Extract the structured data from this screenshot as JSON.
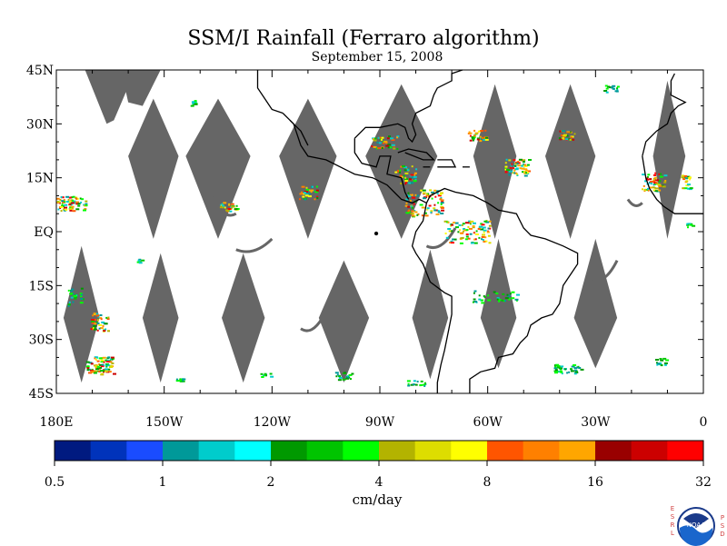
{
  "title": "SSM/I Rainfall (Ferraro algorithm)",
  "subtitle": "September 15, 2008",
  "map": {
    "lon_range": [
      -180,
      0
    ],
    "lat_range": [
      -45,
      45
    ],
    "lat_ticks": [
      {
        "value": 45,
        "label": "45N"
      },
      {
        "value": 30,
        "label": "30N"
      },
      {
        "value": 15,
        "label": "15N"
      },
      {
        "value": 0,
        "label": "EQ"
      },
      {
        "value": -15,
        "label": "15S"
      },
      {
        "value": -30,
        "label": "30S"
      },
      {
        "value": -45,
        "label": "45S"
      }
    ],
    "lon_ticks": [
      {
        "value": -180,
        "label": "180E"
      },
      {
        "value": -150,
        "label": "150W"
      },
      {
        "value": -120,
        "label": "120W"
      },
      {
        "value": -90,
        "label": "90W"
      },
      {
        "value": -60,
        "label": "60W"
      },
      {
        "value": -30,
        "label": "30W"
      },
      {
        "value": 0,
        "label": "0"
      }
    ],
    "missing_data_color": "#666666",
    "coastline_color": "#000000"
  },
  "colorbar": {
    "colors": [
      "#001a80",
      "#0033bb",
      "#1a4cff",
      "#009999",
      "#00cccc",
      "#00ffff",
      "#009900",
      "#00c400",
      "#00ff00",
      "#b3b300",
      "#dddd00",
      "#ffff00",
      "#ff5500",
      "#ff8000",
      "#ffa600",
      "#990000",
      "#cc0000",
      "#ff0000"
    ],
    "tick_labels": [
      "0.5",
      "1",
      "2",
      "4",
      "8",
      "16",
      "32"
    ],
    "units": "cm/day"
  },
  "footer": {
    "left_letters": "ESRL",
    "right_letters": "PSD",
    "logo_text": "NOAA"
  }
}
